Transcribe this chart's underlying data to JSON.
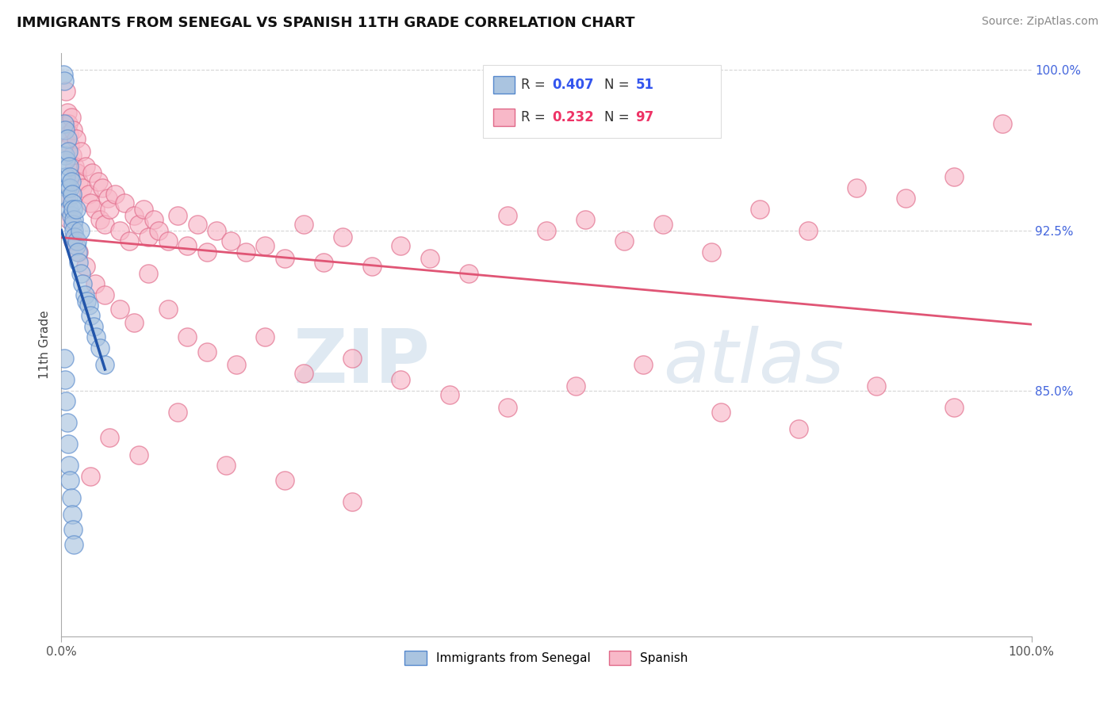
{
  "title": "IMMIGRANTS FROM SENEGAL VS SPANISH 11TH GRADE CORRELATION CHART",
  "source_text": "Source: ZipAtlas.com",
  "ylabel": "11th Grade",
  "xlim": [
    0.0,
    1.0
  ],
  "ylim": [
    0.735,
    1.008
  ],
  "legend_R_blue": "0.407",
  "legend_N_blue": "51",
  "legend_R_pink": "0.232",
  "legend_N_pink": "97",
  "blue_face_color": "#aac4e0",
  "blue_edge_color": "#5588cc",
  "pink_face_color": "#f8b8c8",
  "pink_edge_color": "#e06888",
  "blue_line_color": "#2255aa",
  "pink_line_color": "#e05575",
  "grid_color": "#cccccc",
  "ytick_positions": [
    0.775,
    0.8,
    0.825,
    0.85,
    0.875,
    0.9,
    0.925,
    0.95,
    0.975,
    1.0
  ],
  "ytick_labels": [
    "",
    "",
    "",
    "85.0%",
    "",
    "",
    "92.5%",
    "",
    "",
    "100.0%"
  ],
  "xtick_labels": [
    "0.0%",
    "100.0%"
  ],
  "legend_label_blue": "Immigrants from Senegal",
  "legend_label_pink": "Spanish",
  "watermark_zip": "ZIP",
  "watermark_atlas": "atlas",
  "blue_x": [
    0.002,
    0.003,
    0.003,
    0.004,
    0.004,
    0.005,
    0.005,
    0.006,
    0.006,
    0.007,
    0.007,
    0.008,
    0.008,
    0.009,
    0.009,
    0.01,
    0.01,
    0.011,
    0.011,
    0.012,
    0.012,
    0.013,
    0.013,
    0.014,
    0.015,
    0.015,
    0.016,
    0.017,
    0.018,
    0.019,
    0.02,
    0.022,
    0.024,
    0.026,
    0.028,
    0.03,
    0.033,
    0.036,
    0.04,
    0.045,
    0.003,
    0.004,
    0.005,
    0.006,
    0.007,
    0.008,
    0.009,
    0.01,
    0.011,
    0.012,
    0.013
  ],
  "blue_y": [
    0.998,
    0.995,
    0.975,
    0.972,
    0.96,
    0.958,
    0.95,
    0.968,
    0.945,
    0.962,
    0.94,
    0.955,
    0.935,
    0.95,
    0.945,
    0.948,
    0.932,
    0.942,
    0.938,
    0.935,
    0.928,
    0.93,
    0.925,
    0.922,
    0.918,
    0.935,
    0.92,
    0.915,
    0.91,
    0.925,
    0.905,
    0.9,
    0.895,
    0.892,
    0.89,
    0.885,
    0.88,
    0.875,
    0.87,
    0.862,
    0.865,
    0.855,
    0.845,
    0.835,
    0.825,
    0.815,
    0.808,
    0.8,
    0.792,
    0.785,
    0.778
  ],
  "pink_x": [
    0.005,
    0.006,
    0.007,
    0.008,
    0.009,
    0.01,
    0.011,
    0.012,
    0.014,
    0.015,
    0.016,
    0.018,
    0.02,
    0.022,
    0.025,
    0.028,
    0.03,
    0.032,
    0.035,
    0.038,
    0.04,
    0.042,
    0.045,
    0.048,
    0.05,
    0.055,
    0.06,
    0.065,
    0.07,
    0.075,
    0.08,
    0.085,
    0.09,
    0.095,
    0.1,
    0.11,
    0.12,
    0.13,
    0.14,
    0.15,
    0.16,
    0.175,
    0.19,
    0.21,
    0.23,
    0.25,
    0.27,
    0.29,
    0.32,
    0.35,
    0.38,
    0.42,
    0.46,
    0.5,
    0.54,
    0.58,
    0.62,
    0.67,
    0.72,
    0.77,
    0.82,
    0.87,
    0.92,
    0.97,
    0.005,
    0.008,
    0.012,
    0.018,
    0.025,
    0.035,
    0.045,
    0.06,
    0.075,
    0.09,
    0.11,
    0.13,
    0.15,
    0.18,
    0.21,
    0.25,
    0.3,
    0.35,
    0.4,
    0.46,
    0.53,
    0.6,
    0.68,
    0.76,
    0.84,
    0.92,
    0.03,
    0.05,
    0.08,
    0.12,
    0.17,
    0.23,
    0.3
  ],
  "pink_y": [
    0.99,
    0.98,
    0.975,
    0.97,
    0.965,
    0.978,
    0.96,
    0.972,
    0.955,
    0.968,
    0.952,
    0.948,
    0.962,
    0.945,
    0.955,
    0.942,
    0.938,
    0.952,
    0.935,
    0.948,
    0.93,
    0.945,
    0.928,
    0.94,
    0.935,
    0.942,
    0.925,
    0.938,
    0.92,
    0.932,
    0.928,
    0.935,
    0.922,
    0.93,
    0.925,
    0.92,
    0.932,
    0.918,
    0.928,
    0.915,
    0.925,
    0.92,
    0.915,
    0.918,
    0.912,
    0.928,
    0.91,
    0.922,
    0.908,
    0.918,
    0.912,
    0.905,
    0.932,
    0.925,
    0.93,
    0.92,
    0.928,
    0.915,
    0.935,
    0.925,
    0.945,
    0.94,
    0.95,
    0.975,
    0.94,
    0.93,
    0.92,
    0.915,
    0.908,
    0.9,
    0.895,
    0.888,
    0.882,
    0.905,
    0.888,
    0.875,
    0.868,
    0.862,
    0.875,
    0.858,
    0.865,
    0.855,
    0.848,
    0.842,
    0.852,
    0.862,
    0.84,
    0.832,
    0.852,
    0.842,
    0.81,
    0.828,
    0.82,
    0.84,
    0.815,
    0.808,
    0.798
  ]
}
